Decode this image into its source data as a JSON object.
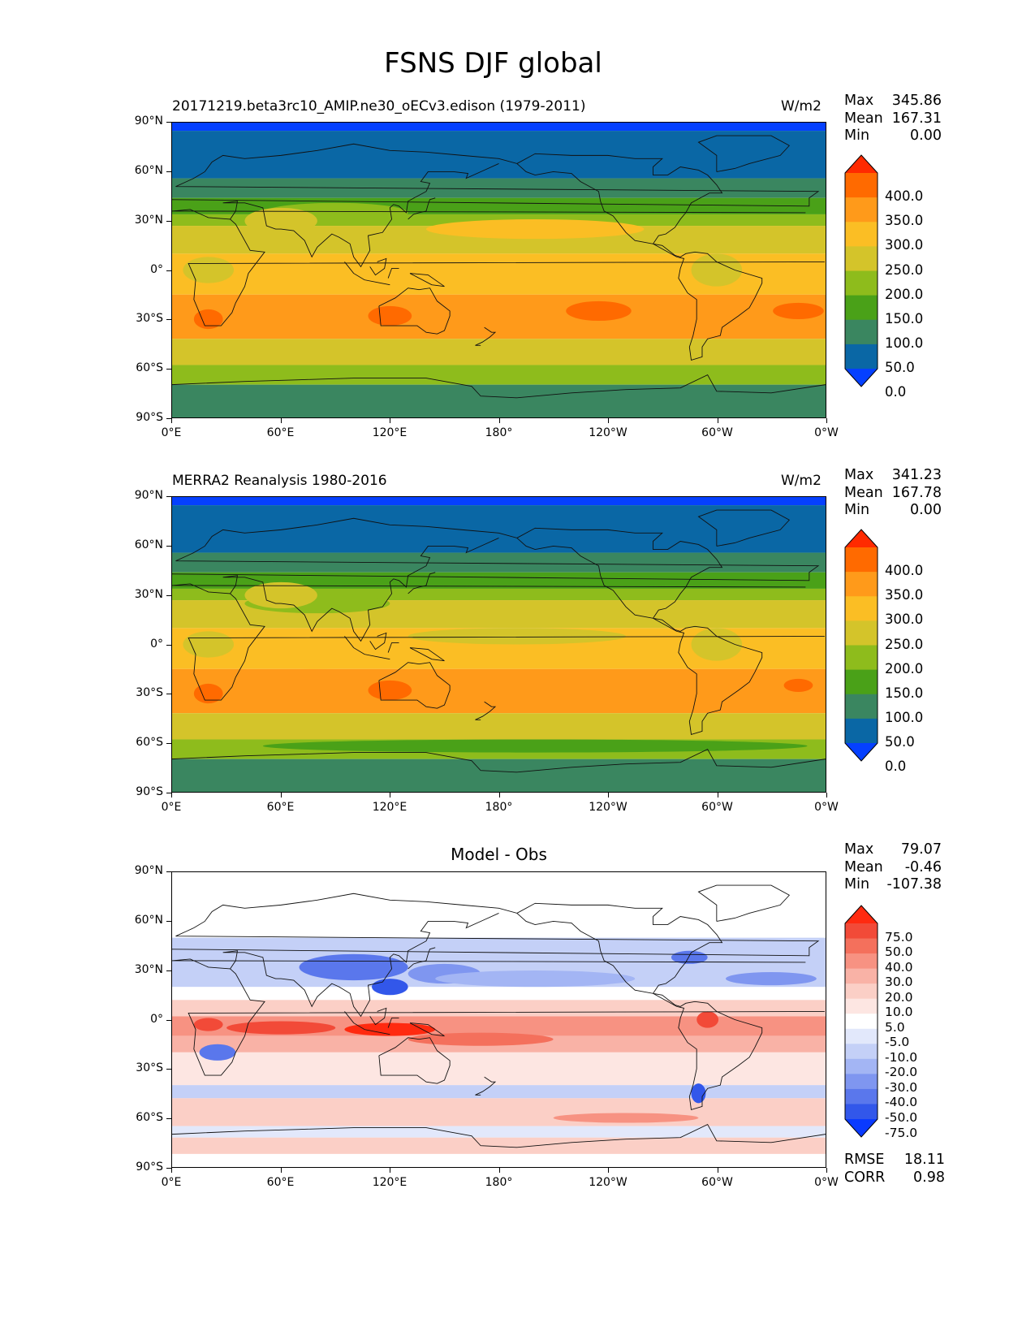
{
  "title": "FSNS DJF global",
  "lat_ticks": [
    "90°N",
    "60°N",
    "30°N",
    "0°",
    "30°S",
    "60°S",
    "90°S"
  ],
  "lon_ticks": [
    "0°E",
    "60°E",
    "120°E",
    "180°",
    "120°W",
    "60°W",
    "0°W"
  ],
  "panels": [
    {
      "title": "20171219.beta3rc10_AMIP.ne30_oECv3.edison (1979-2011)",
      "units": "W/m2",
      "stats": {
        "max_label": "Max",
        "max": "345.86",
        "mean_label": "Mean",
        "mean": "167.31",
        "min_label": "Min",
        "min": "0.00"
      },
      "colorbar": {
        "levels": [
          "400.0",
          "350.0",
          "300.0",
          "250.0",
          "200.0",
          "150.0",
          "100.0",
          "50.0",
          "0.0"
        ],
        "colors": [
          "#ff2a00",
          "#ff6a00",
          "#ff9a1a",
          "#fbbe24",
          "#d4c42a",
          "#8ebc1c",
          "#4aa118",
          "#3a8660",
          "#0a67a5",
          "#0540ff"
        ]
      }
    },
    {
      "title": "MERRA2 Reanalysis 1980-2016",
      "units": "W/m2",
      "stats": {
        "max_label": "Max",
        "max": "341.23",
        "mean_label": "Mean",
        "mean": "167.78",
        "min_label": "Min",
        "min": "0.00"
      },
      "colorbar": {
        "levels": [
          "400.0",
          "350.0",
          "300.0",
          "250.0",
          "200.0",
          "150.0",
          "100.0",
          "50.0",
          "0.0"
        ],
        "colors": [
          "#ff2a00",
          "#ff6a00",
          "#ff9a1a",
          "#fbbe24",
          "#d4c42a",
          "#8ebc1c",
          "#4aa118",
          "#3a8660",
          "#0a67a5",
          "#0540ff"
        ]
      }
    },
    {
      "title": "Model - Obs",
      "units": "",
      "stats": {
        "max_label": "Max",
        "max": "79.07",
        "mean_label": "Mean",
        "mean": "-0.46",
        "min_label": "Min",
        "min": "-107.38"
      },
      "colorbar": {
        "levels": [
          "75.0",
          "50.0",
          "40.0",
          "30.0",
          "20.0",
          "10.0",
          "5.0",
          "-5.0",
          "-10.0",
          "-20.0",
          "-30.0",
          "-40.0",
          "-50.0",
          "-75.0"
        ],
        "colors": [
          "#ff2a10",
          "#f24a38",
          "#f4705c",
          "#f79282",
          "#f9b2a6",
          "#fbcfc6",
          "#fde6e2",
          "#ffffff",
          "#e2e8fb",
          "#c4d0f7",
          "#a3b5f4",
          "#7f96f0",
          "#5a77ec",
          "#3257ea",
          "#0a3aff"
        ]
      },
      "metrics": {
        "rmse_label": "RMSE",
        "rmse": "18.11",
        "corr_label": "CORR",
        "corr": "0.98"
      }
    }
  ]
}
